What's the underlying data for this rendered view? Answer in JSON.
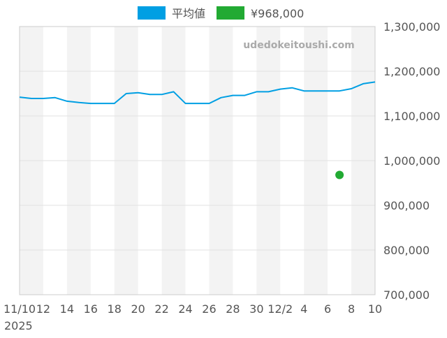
{
  "watermark": "udedokeitoushi.com",
  "chart_data": {
    "type": "line",
    "legend": {
      "placement": "top-center",
      "items": [
        {
          "label": "平均値",
          "color": "#009fe3"
        },
        {
          "label": "¥968,000",
          "color": "#22aa33"
        }
      ]
    },
    "x_axis": {
      "ticks": [
        {
          "x": 0,
          "label": "11/10"
        },
        {
          "x": 2,
          "label": "12"
        },
        {
          "x": 4,
          "label": "14"
        },
        {
          "x": 6,
          "label": "16"
        },
        {
          "x": 8,
          "label": "18"
        },
        {
          "x": 10,
          "label": "20"
        },
        {
          "x": 12,
          "label": "22"
        },
        {
          "x": 14,
          "label": "24"
        },
        {
          "x": 16,
          "label": "26"
        },
        {
          "x": 18,
          "label": "28"
        },
        {
          "x": 20,
          "label": "30"
        },
        {
          "x": 22,
          "label": "12/2"
        },
        {
          "x": 24,
          "label": "4"
        },
        {
          "x": 26,
          "label": "6"
        },
        {
          "x": 28,
          "label": "8"
        },
        {
          "x": 30,
          "label": "10"
        }
      ],
      "year_label": "2025",
      "range": [
        0,
        30
      ]
    },
    "y_axis": {
      "position": "right",
      "range": [
        700000,
        1300000
      ],
      "ticks": [
        {
          "value": 1300000,
          "label": "1,300,000"
        },
        {
          "value": 1200000,
          "label": "1,200,000"
        },
        {
          "value": 1100000,
          "label": "1,100,000"
        },
        {
          "value": 1000000,
          "label": "1,000,000"
        },
        {
          "value": 900000,
          "label": "900,000"
        },
        {
          "value": 800000,
          "label": "800,000"
        },
        {
          "value": 700000,
          "label": "700,000"
        }
      ]
    },
    "grid": true,
    "series": [
      {
        "name": "平均値",
        "color": "#009fe3",
        "points": [
          [
            0,
            1142000
          ],
          [
            1,
            1139000
          ],
          [
            2,
            1139000
          ],
          [
            3,
            1141000
          ],
          [
            4,
            1133000
          ],
          [
            5,
            1130000
          ],
          [
            6,
            1128000
          ],
          [
            7,
            1128000
          ],
          [
            8,
            1128000
          ],
          [
            9,
            1150000
          ],
          [
            10,
            1152000
          ],
          [
            11,
            1148000
          ],
          [
            12,
            1148000
          ],
          [
            13,
            1154000
          ],
          [
            14,
            1128000
          ],
          [
            15,
            1128000
          ],
          [
            16,
            1128000
          ],
          [
            17,
            1141000
          ],
          [
            18,
            1146000
          ],
          [
            19,
            1146000
          ],
          [
            20,
            1154000
          ],
          [
            21,
            1154000
          ],
          [
            22,
            1160000
          ],
          [
            23,
            1163000
          ],
          [
            24,
            1156000
          ],
          [
            25,
            1156000
          ],
          [
            26,
            1156000
          ],
          [
            27,
            1156000
          ],
          [
            28,
            1161000
          ],
          [
            29,
            1172000
          ],
          [
            30,
            1176000
          ]
        ]
      },
      {
        "name": "¥968,000",
        "color": "#22aa33",
        "points": [
          [
            27,
            968000
          ]
        ]
      }
    ]
  }
}
